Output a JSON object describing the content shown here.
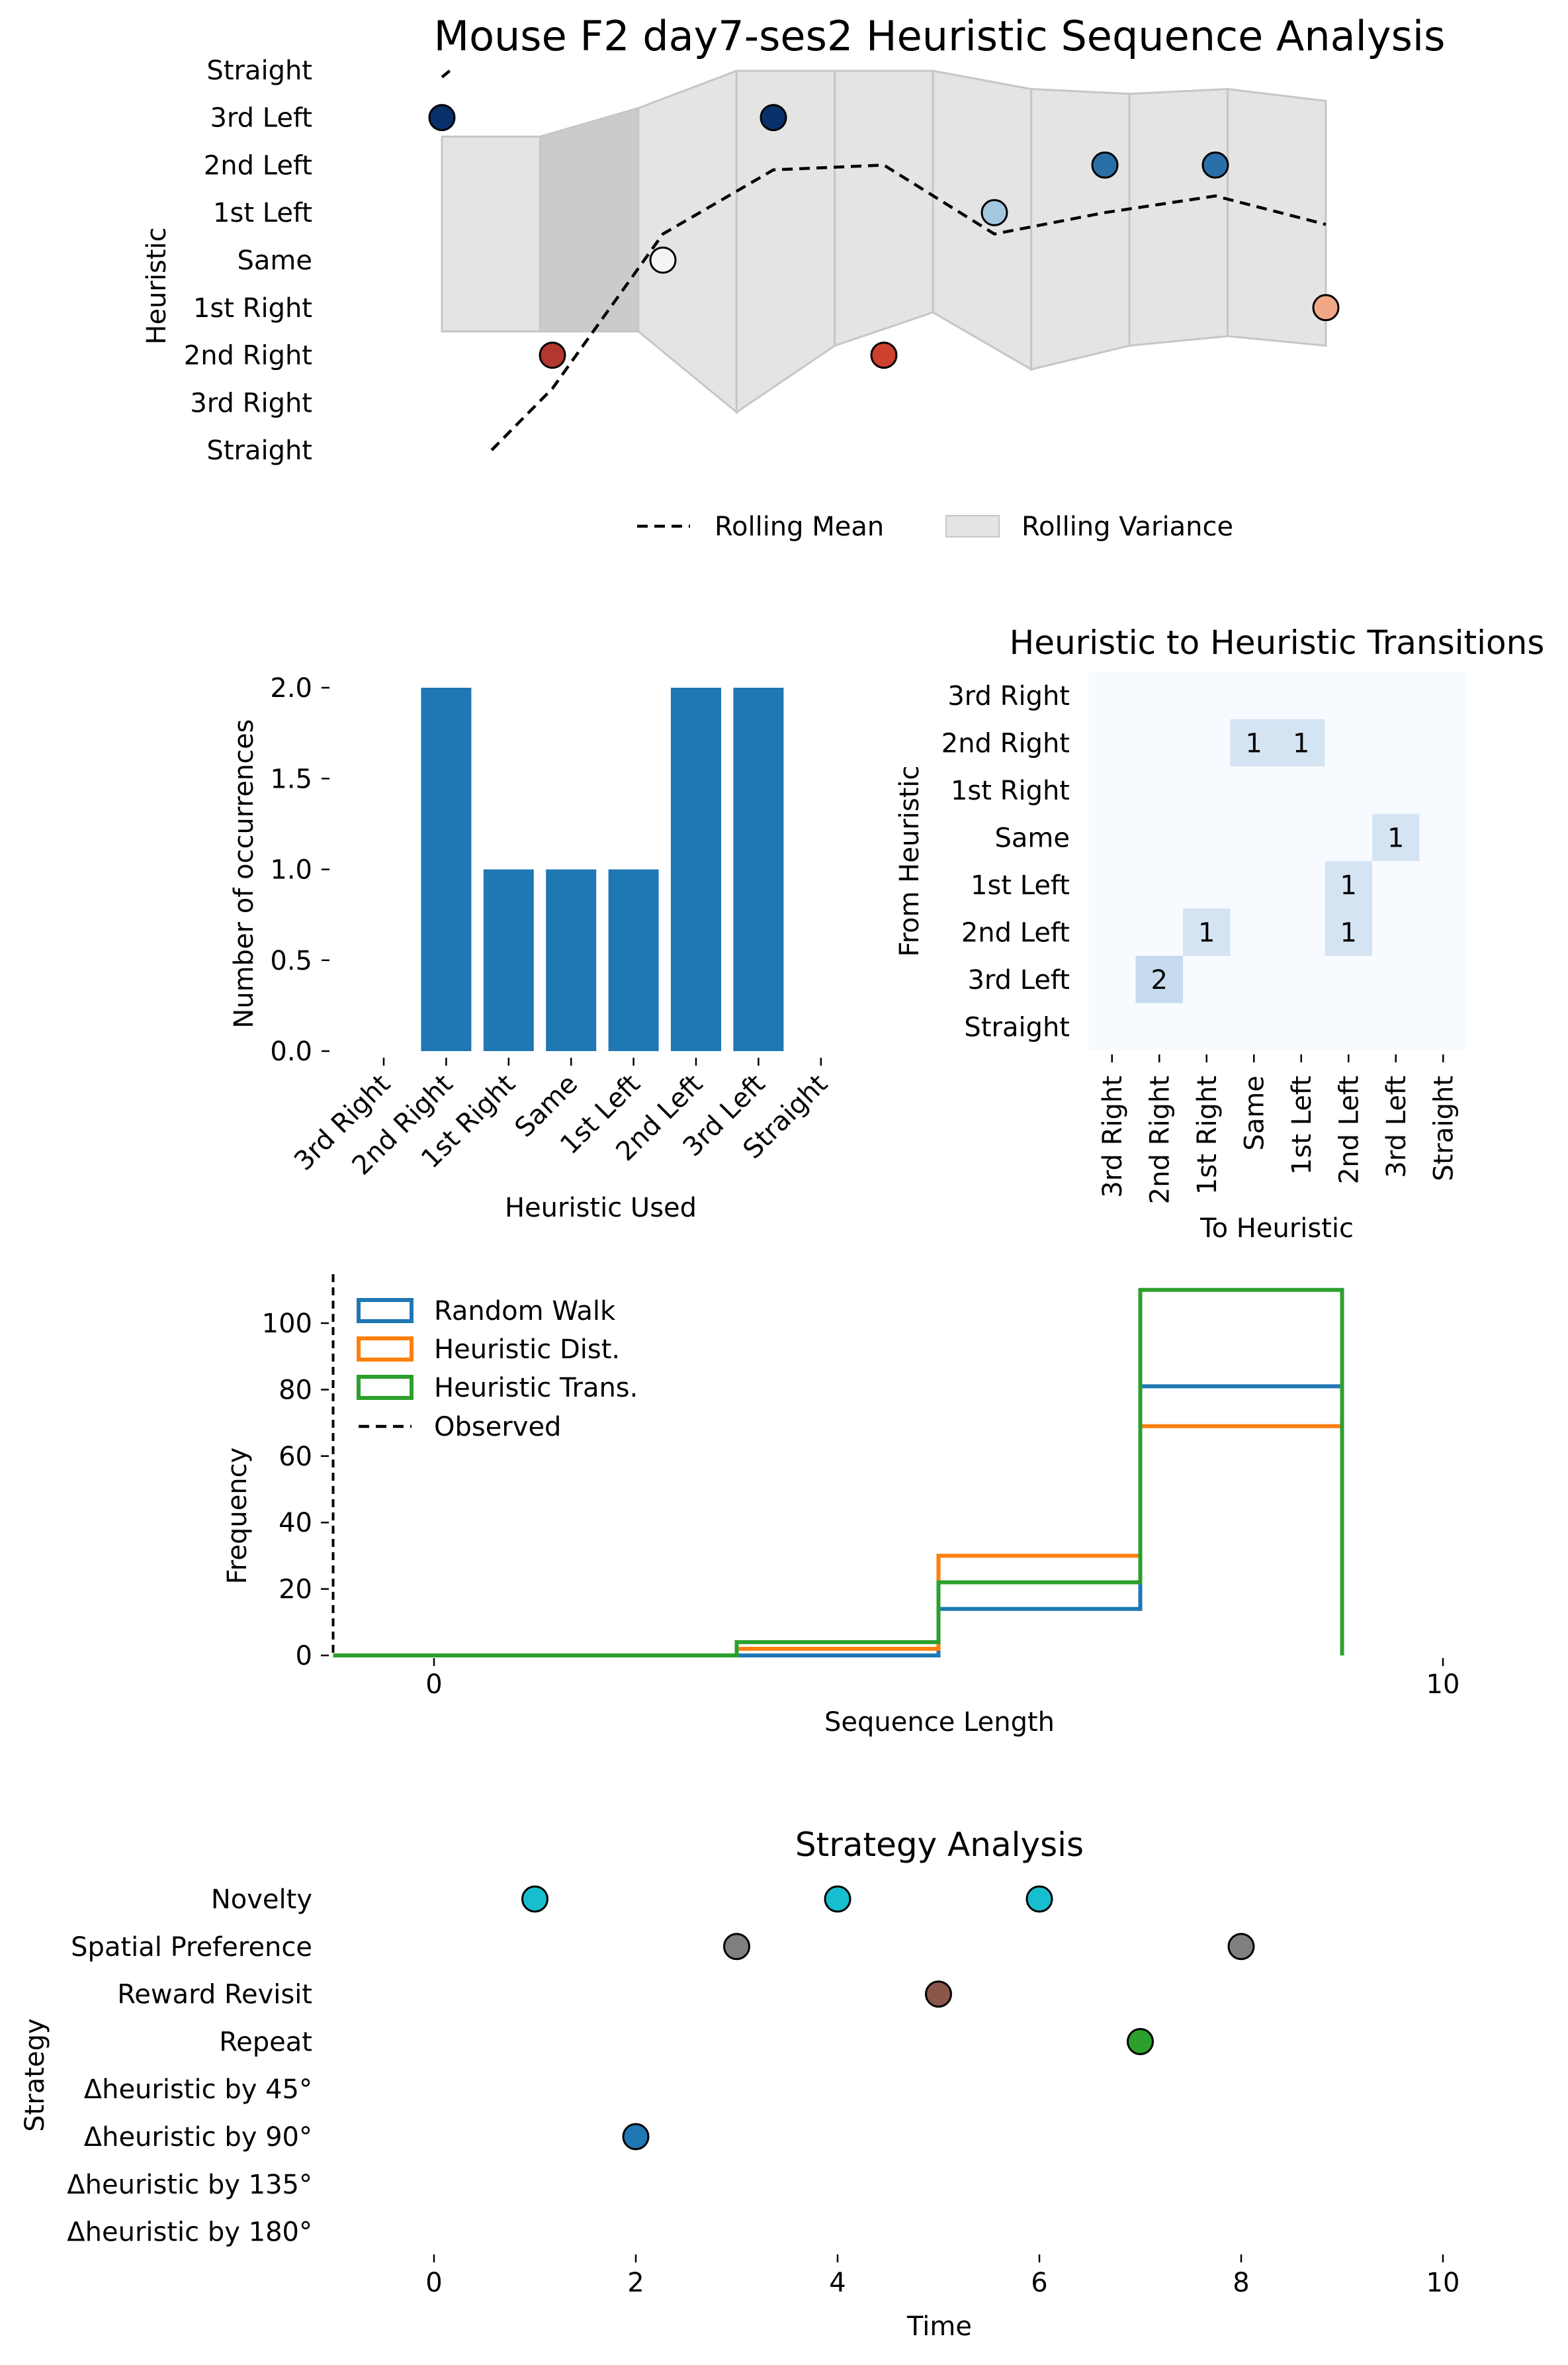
{
  "figure_title": "Mouse F2 day7-ses2 Heuristic Sequence Analysis",
  "colors": {
    "variance_fill": "#e4e4e4",
    "variance_stroke": "#c6c6c6",
    "variance_dark": "#cbcbcb",
    "bar": "#1f77b4",
    "heatmap_bg": "#f7fbff",
    "heatmap_cell": "#d5e4f3",
    "heatmap_cell_dark": "#c6dbef",
    "random_walk": "#1f77b4",
    "heuristic_dist": "#ff7f0e",
    "heuristic_trans": "#2ca02c"
  },
  "chart_data": [
    {
      "id": "sequence",
      "type": "scatter",
      "title": "",
      "xlabel": "",
      "ylabel": "Heuristic",
      "y_categories": [
        "Straight",
        "3rd Left",
        "2nd Left",
        "1st Left",
        "Same",
        "1st Right",
        "2nd Right",
        "3rd Right",
        "Straight"
      ],
      "ylim": [
        -4,
        4
      ],
      "xlim": [
        0,
        8
      ],
      "points": [
        {
          "x": 0,
          "y": 3,
          "color": "#08306b"
        },
        {
          "x": 1,
          "y": -2,
          "color": "#b2372e"
        },
        {
          "x": 2,
          "y": 0,
          "color": "#f5f5f5"
        },
        {
          "x": 3,
          "y": 3,
          "color": "#08306b"
        },
        {
          "x": 4,
          "y": -2,
          "color": "#d0402f"
        },
        {
          "x": 5,
          "y": 1,
          "color": "#a4c8e0"
        },
        {
          "x": 6,
          "y": 2,
          "color": "#2b6fa8"
        },
        {
          "x": 7,
          "y": 2,
          "color": "#2b6fa8"
        },
        {
          "x": 8,
          "y": -1,
          "color": "#f2a886"
        }
      ],
      "rolling_mean": [
        [
          0.07,
          4
        ],
        [
          0,
          3.85
        ]
      ],
      "rolling_mean_main": [
        [
          0.45,
          -4
        ],
        [
          1,
          -2.7
        ],
        [
          2,
          0.55
        ],
        [
          3,
          1.9
        ],
        [
          4,
          2
        ],
        [
          5,
          0.55
        ],
        [
          6,
          1
        ],
        [
          7,
          1.35
        ],
        [
          8,
          0.75
        ]
      ],
      "variance_band": {
        "upper": [
          2.6,
          2.6,
          3.2,
          4.5,
          4.5,
          4.5,
          3.6,
          3.5,
          3.6,
          3.35
        ],
        "lower": [
          -1.5,
          -1.5,
          -1.5,
          -3.2,
          -1.8,
          -1.1,
          -2.3,
          -1.8,
          -1.6,
          -1.8
        ]
      },
      "legend": [
        {
          "label": "Rolling Mean",
          "style": "dashed"
        },
        {
          "label": "Rolling Variance",
          "style": "patch"
        }
      ]
    },
    {
      "id": "heuristic_bar",
      "type": "bar",
      "title": "",
      "xlabel": "Heuristic Used",
      "ylabel": "Number of occurrences",
      "categories": [
        "3rd Right",
        "2nd Right",
        "1st Right",
        "Same",
        "1st Left",
        "2nd Left",
        "3rd Left",
        "Straight"
      ],
      "values": [
        0,
        2,
        1,
        1,
        1,
        2,
        2,
        0
      ],
      "ylim": [
        0,
        2
      ],
      "yticks": [
        "0.0",
        "0.5",
        "1.0",
        "1.5",
        "2.0"
      ]
    },
    {
      "id": "transitions",
      "type": "heatmap",
      "title": "Heuristic to Heuristic Transitions",
      "xlabel": "To Heuristic",
      "ylabel": "From Heuristic",
      "row_labels": [
        "3rd Right",
        "2nd Right",
        "1st Right",
        "Same",
        "1st Left",
        "2nd Left",
        "3rd Left",
        "Straight"
      ],
      "col_labels": [
        "3rd Right",
        "2nd Right",
        "1st Right",
        "Same",
        "1st Left",
        "2nd Left",
        "3rd Left",
        "Straight"
      ],
      "cells": [
        {
          "row": 1,
          "col": 3,
          "value": 1
        },
        {
          "row": 1,
          "col": 4,
          "value": 1
        },
        {
          "row": 3,
          "col": 6,
          "value": 1
        },
        {
          "row": 4,
          "col": 5,
          "value": 1
        },
        {
          "row": 5,
          "col": 2,
          "value": 1
        },
        {
          "row": 5,
          "col": 5,
          "value": 1
        },
        {
          "row": 6,
          "col": 1,
          "value": 2
        }
      ]
    },
    {
      "id": "sequence_length_hist",
      "type": "area",
      "title": "",
      "xlabel": "Sequence Length",
      "ylabel": "Frequency",
      "xlim": [
        -1,
        10
      ],
      "ylim": [
        0,
        115
      ],
      "xticks": [
        "0",
        "10"
      ],
      "yticks": [
        "0",
        "20",
        "40",
        "60",
        "80",
        "100"
      ],
      "series": [
        {
          "name": "Random Walk",
          "edges": [
            -1,
            3,
            5,
            7,
            9
          ],
          "values": [
            0,
            0,
            14,
            81
          ]
        },
        {
          "name": "Heuristic Dist.",
          "edges": [
            -1,
            3,
            5,
            7,
            9
          ],
          "values": [
            0,
            2,
            30,
            69
          ]
        },
        {
          "name": "Heuristic Trans.",
          "edges": [
            -1,
            3,
            5,
            7,
            9
          ],
          "values": [
            0,
            4,
            22,
            110
          ]
        }
      ],
      "observed_x": -1,
      "observed_label": "Observed"
    },
    {
      "id": "strategy",
      "type": "scatter",
      "title": "Strategy Analysis",
      "xlabel": "Time",
      "ylabel": "Strategy",
      "xlim": [
        0,
        10
      ],
      "xticks": [
        "0",
        "2",
        "4",
        "6",
        "8",
        "10"
      ],
      "y_categories": [
        "Novelty",
        "Spatial Preference",
        "Reward Revisit",
        "Repeat",
        "Δheuristic by 45°",
        "Δheuristic by 90°",
        "Δheuristic by 135°",
        "Δheuristic by 180°"
      ],
      "points": [
        {
          "x": 1,
          "cat": 0,
          "color": "#17becf"
        },
        {
          "x": 2,
          "cat": 5,
          "color": "#1f77b4"
        },
        {
          "x": 3,
          "cat": 1,
          "color": "#7f7f7f"
        },
        {
          "x": 4,
          "cat": 0,
          "color": "#17becf"
        },
        {
          "x": 5,
          "cat": 2,
          "color": "#8c564b"
        },
        {
          "x": 6,
          "cat": 0,
          "color": "#17becf"
        },
        {
          "x": 7,
          "cat": 3,
          "color": "#2ca02c"
        },
        {
          "x": 8,
          "cat": 1,
          "color": "#7f7f7f"
        }
      ]
    }
  ]
}
